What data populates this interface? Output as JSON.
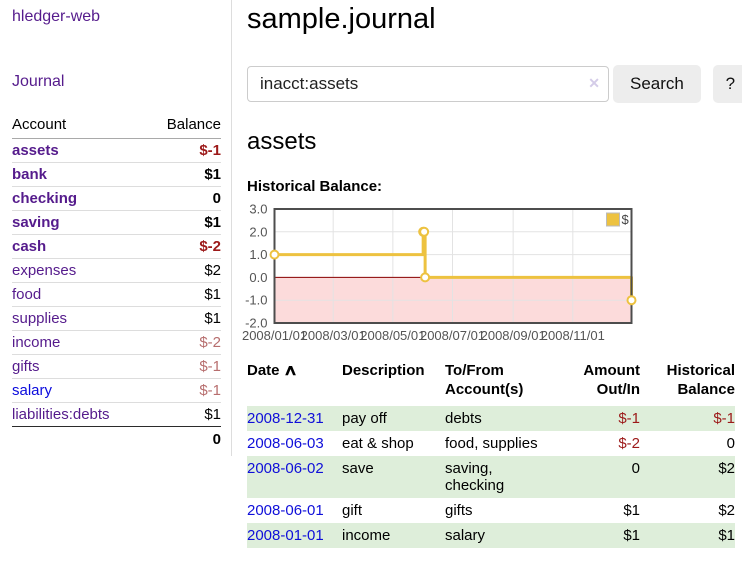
{
  "app_title": "hledger-web",
  "sidebar": {
    "journal_link": "Journal",
    "account_header": "Account",
    "balance_header": "Balance",
    "accounts": [
      {
        "name": "assets",
        "balance": "$-1",
        "level": 0,
        "bold": true,
        "negative": "strong"
      },
      {
        "name": "bank",
        "balance": "$1",
        "level": 1,
        "bold": true,
        "negative": "none"
      },
      {
        "name": "checking",
        "balance": "0",
        "level": 2,
        "bold": true,
        "negative": "none"
      },
      {
        "name": "saving",
        "balance": "$1",
        "level": 2,
        "bold": true,
        "negative": "none"
      },
      {
        "name": "cash",
        "balance": "$-2",
        "level": 1,
        "bold": true,
        "negative": "strong"
      },
      {
        "name": "expenses",
        "balance": "$2",
        "level": 0,
        "bold": false,
        "negative": "none"
      },
      {
        "name": "food",
        "balance": "$1",
        "level": 1,
        "bold": false,
        "negative": "none"
      },
      {
        "name": "supplies",
        "balance": "$1",
        "level": 1,
        "bold": false,
        "negative": "none"
      },
      {
        "name": "income",
        "balance": "$-2",
        "level": 0,
        "bold": false,
        "negative": "soft"
      },
      {
        "name": "gifts",
        "balance": "$-1",
        "level": 1,
        "bold": false,
        "negative": "soft"
      },
      {
        "name": "salary",
        "balance": "$-1",
        "level": 1,
        "bold": false,
        "negative": "soft"
      },
      {
        "name": "liabilities:debts",
        "balance": "$1",
        "level": 0,
        "bold": false,
        "negative": "none"
      }
    ],
    "total": "0"
  },
  "main": {
    "title": "sample.journal",
    "search": {
      "value": "inacct:assets",
      "clear_icon": "✕",
      "button": "Search",
      "help": "?"
    },
    "account_heading": "assets",
    "section_label": "Historical Balance:"
  },
  "chart_data": {
    "type": "line",
    "step": true,
    "title": "Historical Balance",
    "series": [
      {
        "name": "$",
        "color": "#edc240",
        "points": [
          [
            "2008-01-01",
            1
          ],
          [
            "2008-06-01",
            2
          ],
          [
            "2008-06-02",
            2
          ],
          [
            "2008-06-03",
            0
          ],
          [
            "2008-12-31",
            -1
          ]
        ]
      }
    ],
    "x_range": [
      "2008-01-01",
      "2008-12-31"
    ],
    "x_ticks": [
      "2008/01/01",
      "2008/03/01",
      "2008/05/01",
      "2008/07/01",
      "2008/09/01",
      "2008/11/01"
    ],
    "y_ticks": [
      "3.0",
      "2.0",
      "1.0",
      "0.0",
      "-1.0",
      "-2.0"
    ],
    "ylim": [
      -2,
      3
    ],
    "grid": true,
    "legend": {
      "label": "$",
      "position": "top-right"
    },
    "negative_region_color": "#fcdbdb",
    "zero_line_color": "#8b0000",
    "grid_color": "#e3e3e3",
    "border_color": "#4d4d4d",
    "tick_label_color": "#545454"
  },
  "register": {
    "headers": {
      "date": "Date",
      "sort_icon": "∧",
      "description": "Description",
      "account": "To/From Account(s)",
      "amount": "Amount Out/In",
      "balance": "Historical Balance"
    },
    "rows": [
      {
        "date": "2008-12-31",
        "description": "pay off",
        "account": "debts",
        "amount": "$-1",
        "balance": "$-1"
      },
      {
        "date": "2008-06-03",
        "description": "eat & shop",
        "account": "food, supplies",
        "amount": "$-2",
        "balance": "0"
      },
      {
        "date": "2008-06-02",
        "description": "save",
        "account": "saving, checking",
        "amount": "0",
        "balance": "$2"
      },
      {
        "date": "2008-06-01",
        "description": "gift",
        "account": "gifts",
        "amount": "$1",
        "balance": "$2"
      },
      {
        "date": "2008-01-01",
        "description": "income",
        "account": "salary",
        "amount": "$1",
        "balance": "$1"
      }
    ]
  }
}
